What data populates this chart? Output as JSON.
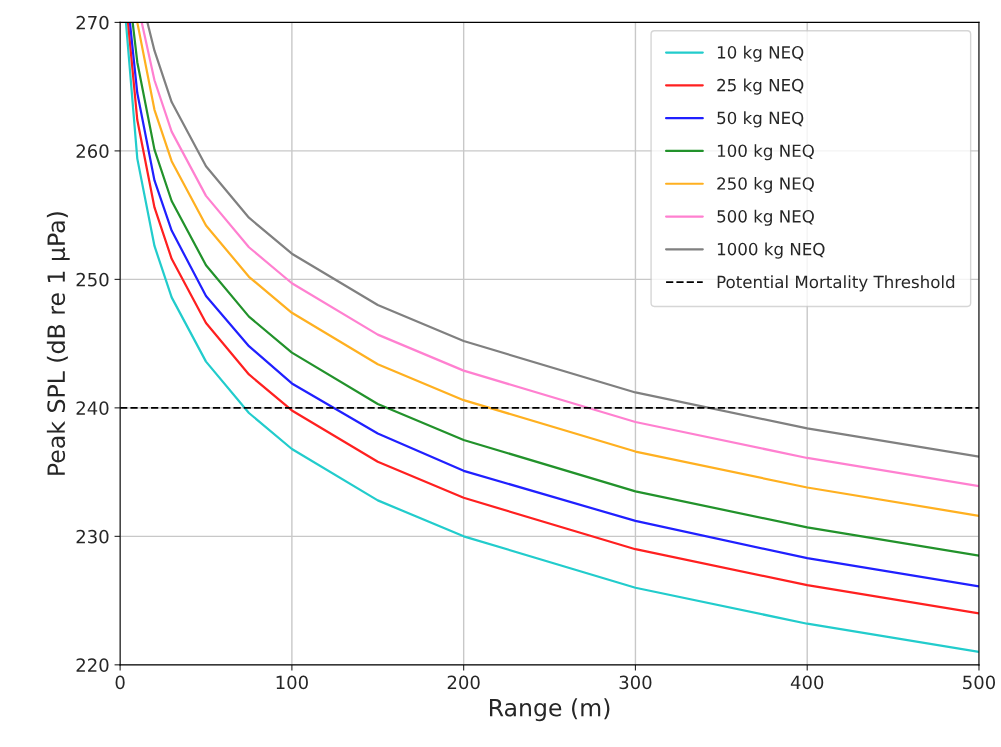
{
  "chart_data": {
    "type": "line",
    "xlabel": "Range (m)",
    "ylabel": "Peak SPL (dB re 1 µPa)",
    "xlim": [
      0,
      500
    ],
    "xticks": [
      0,
      100,
      200,
      300,
      400,
      500
    ],
    "ylim": [
      220,
      270
    ],
    "yticks": [
      220,
      230,
      240,
      250,
      260,
      270
    ],
    "grid": true,
    "legend": "top right",
    "line_style": "solid",
    "marker": "none",
    "series": [
      {
        "name": "10 kg NEQ",
        "color": "#22cccc",
        "x": [
          3.4,
          10,
          20,
          30,
          50,
          75,
          100,
          150,
          200,
          300,
          400,
          500
        ],
        "values": [
          270,
          259.4,
          252.6,
          248.6,
          243.6,
          239.6,
          236.8,
          232.8,
          230.0,
          226.0,
          223.2,
          221.0
        ]
      },
      {
        "name": "25 kg NEQ",
        "color": "#ff2020",
        "x": [
          4.6,
          10,
          20,
          30,
          50,
          75,
          100,
          150,
          200,
          300,
          400,
          500
        ],
        "values": [
          270,
          262.4,
          255.6,
          251.6,
          246.6,
          242.6,
          239.8,
          235.8,
          233.0,
          229.0,
          226.2,
          224.0
        ]
      },
      {
        "name": "50 kg NEQ",
        "color": "#2020ff",
        "x": [
          5.7,
          10,
          20,
          30,
          50,
          75,
          100,
          150,
          200,
          300,
          400,
          500
        ],
        "values": [
          270,
          264.5,
          257.7,
          253.8,
          248.7,
          244.8,
          241.9,
          238.0,
          235.1,
          231.2,
          228.3,
          226.1
        ]
      },
      {
        "name": "100 kg NEQ",
        "color": "#22922b",
        "x": [
          7.3,
          10,
          20,
          30,
          50,
          75,
          100,
          150,
          200,
          300,
          400,
          500
        ],
        "values": [
          270,
          266.9,
          260.1,
          256.1,
          251.1,
          247.1,
          244.3,
          240.3,
          237.5,
          233.5,
          230.7,
          228.5
        ]
      },
      {
        "name": "250 kg NEQ",
        "color": "#ffb020",
        "x": [
          10,
          20,
          30,
          50,
          75,
          100,
          150,
          200,
          300,
          400,
          500
        ],
        "values": [
          270,
          263.2,
          259.2,
          254.2,
          250.2,
          247.4,
          243.4,
          240.6,
          236.6,
          233.8,
          231.6
        ]
      },
      {
        "name": "500 kg NEQ",
        "color": "#ff80d0",
        "x": [
          12.6,
          20,
          30,
          50,
          75,
          100,
          150,
          200,
          300,
          400,
          500
        ],
        "values": [
          270,
          265.5,
          261.5,
          256.5,
          252.5,
          249.7,
          245.7,
          242.9,
          238.9,
          236.1,
          233.9
        ]
      },
      {
        "name": "1000 kg NEQ",
        "color": "#808080",
        "x": [
          15.9,
          20,
          30,
          50,
          75,
          100,
          150,
          200,
          300,
          400,
          500
        ],
        "values": [
          270,
          267.8,
          263.8,
          258.8,
          254.8,
          252.0,
          248.0,
          245.2,
          241.2,
          238.4,
          236.2
        ]
      }
    ],
    "ref_lines": [
      {
        "axis": "y",
        "value": 240,
        "label": "Potential Mortality Threshold",
        "color": "#000000",
        "line_style": "dashed"
      }
    ]
  }
}
